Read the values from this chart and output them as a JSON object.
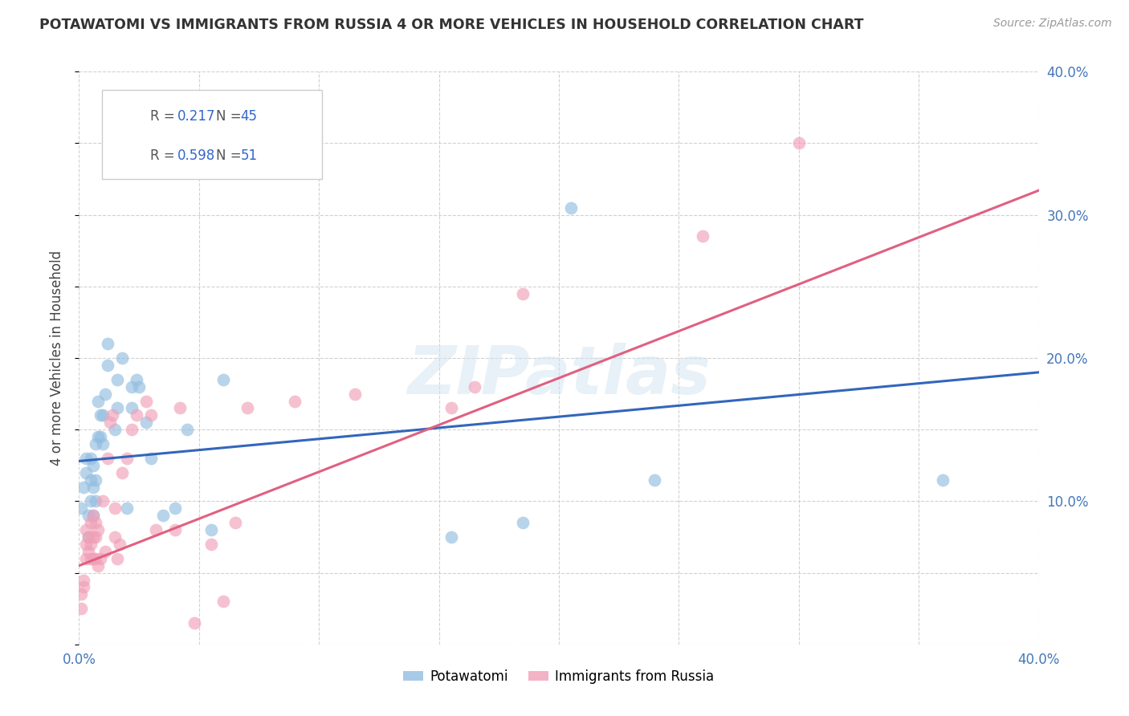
{
  "title": "POTAWATOMI VS IMMIGRANTS FROM RUSSIA 4 OR MORE VEHICLES IN HOUSEHOLD CORRELATION CHART",
  "source": "Source: ZipAtlas.com",
  "ylabel": "4 or more Vehicles in Household",
  "xlim": [
    0,
    0.4
  ],
  "ylim": [
    0,
    0.4
  ],
  "blue_color": "#92bde0",
  "pink_color": "#f0a0b8",
  "blue_line_color": "#3366bb",
  "pink_line_color": "#e06080",
  "watermark": "ZIPatlas",
  "blue_intercept": 0.128,
  "blue_slope": 0.155,
  "pink_intercept": 0.055,
  "pink_slope": 0.655,
  "blue_points_x": [
    0.001,
    0.002,
    0.003,
    0.003,
    0.004,
    0.004,
    0.005,
    0.005,
    0.005,
    0.006,
    0.006,
    0.006,
    0.007,
    0.007,
    0.007,
    0.008,
    0.008,
    0.009,
    0.009,
    0.01,
    0.01,
    0.011,
    0.012,
    0.012,
    0.015,
    0.016,
    0.016,
    0.018,
    0.02,
    0.022,
    0.022,
    0.024,
    0.025,
    0.028,
    0.03,
    0.035,
    0.04,
    0.045,
    0.055,
    0.06,
    0.155,
    0.185,
    0.205,
    0.24,
    0.36
  ],
  "blue_points_y": [
    0.095,
    0.11,
    0.12,
    0.13,
    0.075,
    0.09,
    0.1,
    0.115,
    0.13,
    0.09,
    0.11,
    0.125,
    0.1,
    0.115,
    0.14,
    0.145,
    0.17,
    0.145,
    0.16,
    0.14,
    0.16,
    0.175,
    0.195,
    0.21,
    0.15,
    0.165,
    0.185,
    0.2,
    0.095,
    0.165,
    0.18,
    0.185,
    0.18,
    0.155,
    0.13,
    0.09,
    0.095,
    0.15,
    0.08,
    0.185,
    0.075,
    0.085,
    0.305,
    0.115,
    0.115
  ],
  "pink_points_x": [
    0.001,
    0.001,
    0.002,
    0.002,
    0.003,
    0.003,
    0.003,
    0.004,
    0.004,
    0.005,
    0.005,
    0.005,
    0.006,
    0.006,
    0.006,
    0.007,
    0.007,
    0.007,
    0.008,
    0.008,
    0.009,
    0.01,
    0.011,
    0.012,
    0.013,
    0.014,
    0.015,
    0.015,
    0.016,
    0.017,
    0.018,
    0.02,
    0.022,
    0.024,
    0.028,
    0.03,
    0.032,
    0.04,
    0.042,
    0.048,
    0.055,
    0.06,
    0.065,
    0.07,
    0.09,
    0.115,
    0.155,
    0.165,
    0.185,
    0.26,
    0.3
  ],
  "pink_points_y": [
    0.025,
    0.035,
    0.04,
    0.045,
    0.06,
    0.07,
    0.08,
    0.065,
    0.075,
    0.06,
    0.07,
    0.085,
    0.06,
    0.075,
    0.09,
    0.06,
    0.075,
    0.085,
    0.055,
    0.08,
    0.06,
    0.1,
    0.065,
    0.13,
    0.155,
    0.16,
    0.075,
    0.095,
    0.06,
    0.07,
    0.12,
    0.13,
    0.15,
    0.16,
    0.17,
    0.16,
    0.08,
    0.08,
    0.165,
    0.015,
    0.07,
    0.03,
    0.085,
    0.165,
    0.17,
    0.175,
    0.165,
    0.18,
    0.245,
    0.285,
    0.35
  ]
}
